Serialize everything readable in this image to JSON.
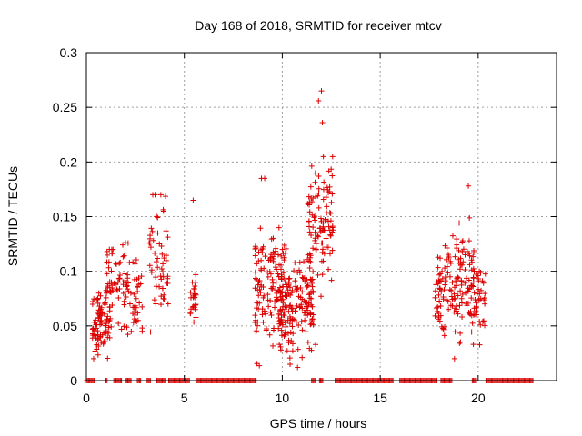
{
  "chart_data": {
    "type": "scatter",
    "title": "Day 168 of 2018, SRMTID for receiver mtcv",
    "xlabel": "GPS time / hours",
    "ylabel": "SRMTID / TECUs",
    "xlim": [
      0,
      24
    ],
    "ylim": [
      0,
      0.3
    ],
    "xticks": [
      0,
      5,
      10,
      15,
      20
    ],
    "xtick_labels": [
      "0",
      "5",
      "10",
      "15",
      "20"
    ],
    "yticks": [
      0,
      0.05,
      0.1,
      0.15,
      0.2,
      0.25,
      0.3
    ],
    "ytick_labels": [
      "0",
      "0.05",
      "0.1",
      "0.15",
      "0.2",
      "0.25",
      "0.3"
    ],
    "grid": true,
    "marker": "+",
    "color": "#dd0000",
    "clusters": [
      {
        "x_range": [
          0.3,
          1.2
        ],
        "y_center": 0.052,
        "y_spread": 0.014,
        "count": 90,
        "y_max": 0.08
      },
      {
        "x_range": [
          1.0,
          1.5
        ],
        "y_center": 0.085,
        "y_spread": 0.02,
        "count": 35,
        "y_max": 0.12
      },
      {
        "x_range": [
          1.5,
          2.2
        ],
        "y_center": 0.085,
        "y_spread": 0.022,
        "count": 40,
        "y_max": 0.145
      },
      {
        "x_range": [
          2.2,
          2.9
        ],
        "y_center": 0.07,
        "y_spread": 0.018,
        "count": 35,
        "y_max": 0.13
      },
      {
        "x_range": [
          3.2,
          4.2
        ],
        "y_center": 0.11,
        "y_spread": 0.03,
        "count": 55,
        "y_max": 0.17
      },
      {
        "x_range": [
          5.3,
          5.6
        ],
        "y_center": 0.075,
        "y_spread": 0.012,
        "count": 25,
        "y_max": 0.165
      },
      {
        "x_range": [
          8.6,
          10.2
        ],
        "y_center": 0.085,
        "y_spread": 0.028,
        "count": 140,
        "y_max": 0.185
      },
      {
        "x_range": [
          9.8,
          11.6
        ],
        "y_center": 0.07,
        "y_spread": 0.022,
        "count": 160,
        "y_max": 0.12
      },
      {
        "x_range": [
          11.3,
          12.6
        ],
        "y_center": 0.145,
        "y_spread": 0.028,
        "count": 100,
        "y_max": 0.265
      },
      {
        "x_range": [
          17.8,
          19.0
        ],
        "y_center": 0.08,
        "y_spread": 0.02,
        "count": 90,
        "y_max": 0.155
      },
      {
        "x_range": [
          19.0,
          19.8
        ],
        "y_center": 0.095,
        "y_spread": 0.03,
        "count": 70,
        "y_max": 0.178
      },
      {
        "x_range": [
          19.8,
          20.4
        ],
        "y_center": 0.075,
        "y_spread": 0.015,
        "count": 35,
        "y_max": 0.1
      }
    ],
    "outliers": [
      {
        "x": 12.0,
        "y": 0.265
      },
      {
        "x": 11.85,
        "y": 0.256
      },
      {
        "x": 12.05,
        "y": 0.236
      },
      {
        "x": 12.1,
        "y": 0.205
      },
      {
        "x": 9.1,
        "y": 0.185
      },
      {
        "x": 19.5,
        "y": 0.178
      },
      {
        "x": 3.8,
        "y": 0.17
      },
      {
        "x": 5.45,
        "y": 0.165
      },
      {
        "x": 10.4,
        "y": 0.015
      },
      {
        "x": 11.7,
        "y": 0.033
      }
    ],
    "zero_bands": [
      [
        0.0,
        0.4
      ],
      [
        1.0,
        1.1
      ],
      [
        1.4,
        1.8
      ],
      [
        2.0,
        2.3
      ],
      [
        2.6,
        2.8
      ],
      [
        3.1,
        3.3
      ],
      [
        3.6,
        4.1
      ],
      [
        4.2,
        5.3
      ],
      [
        5.6,
        8.7
      ],
      [
        11.5,
        11.7
      ],
      [
        11.9,
        12.1
      ],
      [
        12.7,
        15.7
      ],
      [
        16.0,
        17.9
      ],
      [
        18.1,
        18.7
      ],
      [
        19.7,
        19.9
      ],
      [
        20.4,
        22.8
      ]
    ]
  }
}
